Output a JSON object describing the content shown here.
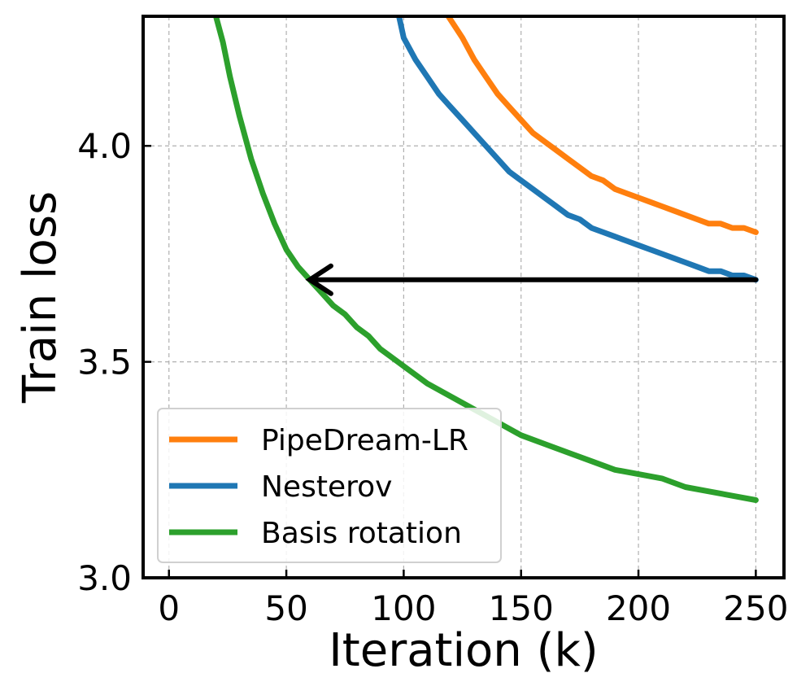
{
  "chart_data": {
    "type": "line",
    "title": "",
    "xlabel": "Iteration (k)",
    "ylabel": "Train loss",
    "xlim": [
      -11,
      262
    ],
    "ylim": [
      3.0,
      4.3
    ],
    "xticks": [
      0,
      50,
      100,
      150,
      200,
      250
    ],
    "xtick_labels": [
      "0",
      "50",
      "100",
      "150",
      "200",
      "250"
    ],
    "yticks": [
      3.0,
      3.5,
      4.0
    ],
    "ytick_labels": [
      "3.0",
      "3.5",
      "4.0"
    ],
    "grid": true,
    "legend_position": "lower-left",
    "series": [
      {
        "name": "PipeDream-LR",
        "color": "#ff7f0e",
        "x": [
          119,
          125,
          130,
          135,
          140,
          145,
          150,
          155,
          160,
          165,
          170,
          175,
          180,
          185,
          190,
          195,
          200,
          205,
          210,
          215,
          220,
          225,
          230,
          235,
          240,
          245,
          250
        ],
        "y": [
          4.3,
          4.25,
          4.2,
          4.16,
          4.12,
          4.09,
          4.06,
          4.03,
          4.01,
          3.99,
          3.97,
          3.95,
          3.93,
          3.92,
          3.9,
          3.89,
          3.88,
          3.87,
          3.86,
          3.85,
          3.84,
          3.83,
          3.82,
          3.82,
          3.81,
          3.81,
          3.8
        ]
      },
      {
        "name": "Nesterov",
        "color": "#1f77b4",
        "x": [
          98,
          100,
          105,
          110,
          115,
          120,
          125,
          130,
          135,
          140,
          145,
          150,
          155,
          160,
          165,
          170,
          175,
          180,
          185,
          190,
          195,
          200,
          205,
          210,
          215,
          220,
          225,
          230,
          235,
          240,
          245,
          250
        ],
        "y": [
          4.3,
          4.25,
          4.2,
          4.16,
          4.12,
          4.09,
          4.06,
          4.03,
          4.0,
          3.97,
          3.94,
          3.92,
          3.9,
          3.88,
          3.86,
          3.84,
          3.83,
          3.81,
          3.8,
          3.79,
          3.78,
          3.77,
          3.76,
          3.75,
          3.74,
          3.73,
          3.72,
          3.71,
          3.71,
          3.7,
          3.7,
          3.69
        ]
      },
      {
        "name": "Basis rotation",
        "color": "#2ca02c",
        "x": [
          20,
          23,
          26,
          30,
          35,
          40,
          45,
          50,
          55,
          60,
          65,
          70,
          75,
          80,
          85,
          90,
          95,
          100,
          110,
          120,
          130,
          140,
          150,
          160,
          170,
          180,
          190,
          200,
          210,
          220,
          230,
          240,
          250
        ],
        "y": [
          4.3,
          4.24,
          4.16,
          4.07,
          3.97,
          3.89,
          3.82,
          3.76,
          3.72,
          3.69,
          3.66,
          3.63,
          3.61,
          3.58,
          3.56,
          3.53,
          3.51,
          3.49,
          3.45,
          3.42,
          3.39,
          3.36,
          3.33,
          3.31,
          3.29,
          3.27,
          3.25,
          3.24,
          3.23,
          3.21,
          3.2,
          3.19,
          3.18
        ]
      }
    ],
    "annotations": [
      {
        "type": "arrow",
        "color": "#000000",
        "from": [
          250,
          3.69
        ],
        "to": [
          60,
          3.69
        ]
      }
    ]
  }
}
